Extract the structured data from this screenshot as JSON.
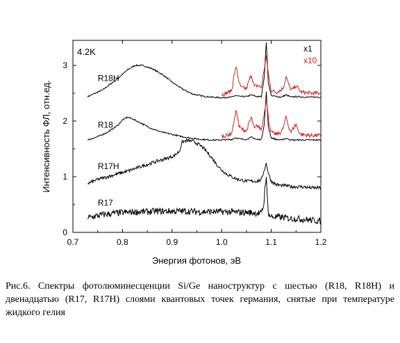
{
  "chart_data": {
    "type": "line",
    "title": "",
    "xlabel": "Энергия фотонов, эВ",
    "ylabel": "Интенсивность ФЛ, отн.ед.",
    "xlim": [
      0.7,
      1.2
    ],
    "ylim": [
      0,
      3.45
    ],
    "x_ticks": [
      "0.7",
      "0.8",
      "0.9",
      "1.0",
      "1.1",
      "1.2"
    ],
    "y_ticks": [
      "0",
      "1",
      "2",
      "3"
    ],
    "annotations": {
      "temperature": "4.2K"
    },
    "legend": {
      "x1": "x1",
      "x10": "x10",
      "placement": "top-right"
    },
    "series": [
      {
        "name": "R18H",
        "color": "#000000",
        "multiplier": "x1",
        "x": [
          0.73,
          0.76,
          0.79,
          0.81,
          0.825,
          0.84,
          0.86,
          0.88,
          0.9,
          0.92,
          0.94,
          0.96,
          0.98,
          1.0,
          1.02,
          1.028,
          1.036,
          1.05,
          1.06,
          1.07,
          1.08,
          1.086,
          1.09,
          1.094,
          1.1,
          1.11,
          1.12,
          1.13,
          1.14,
          1.15,
          1.17,
          1.2
        ],
        "y": [
          2.44,
          2.56,
          2.76,
          2.92,
          3.0,
          3.0,
          2.94,
          2.84,
          2.7,
          2.58,
          2.49,
          2.45,
          2.43,
          2.42,
          2.43,
          2.46,
          2.44,
          2.44,
          2.47,
          2.44,
          2.44,
          2.8,
          3.42,
          2.7,
          2.46,
          2.44,
          2.43,
          2.47,
          2.43,
          2.44,
          2.43,
          2.43
        ]
      },
      {
        "name": "R18H x10",
        "color": "#d42020",
        "multiplier": "x10",
        "x": [
          1.0,
          1.01,
          1.02,
          1.025,
          1.03,
          1.035,
          1.04,
          1.05,
          1.056,
          1.06,
          1.066,
          1.072,
          1.08,
          1.085,
          1.09,
          1.095,
          1.1,
          1.11,
          1.12,
          1.125,
          1.13,
          1.135,
          1.14,
          1.145,
          1.15,
          1.155,
          1.16,
          1.18,
          1.2
        ],
        "y": [
          2.48,
          2.5,
          2.55,
          2.82,
          2.98,
          2.68,
          2.6,
          2.58,
          2.75,
          2.82,
          2.62,
          2.64,
          2.6,
          2.9,
          3.15,
          2.8,
          2.55,
          2.52,
          2.56,
          2.62,
          2.8,
          2.66,
          2.56,
          2.58,
          2.64,
          2.58,
          2.52,
          2.5,
          2.5
        ]
      },
      {
        "name": "R18",
        "color": "#000000",
        "multiplier": "x1",
        "x": [
          0.73,
          0.75,
          0.77,
          0.79,
          0.8,
          0.81,
          0.82,
          0.84,
          0.86,
          0.88,
          0.9,
          0.92,
          0.94,
          0.96,
          0.98,
          1.0,
          1.02,
          1.028,
          1.036,
          1.05,
          1.06,
          1.07,
          1.08,
          1.086,
          1.09,
          1.094,
          1.1,
          1.11,
          1.12,
          1.13,
          1.14,
          1.16,
          1.2
        ],
        "y": [
          1.66,
          1.72,
          1.8,
          1.92,
          2.02,
          2.07,
          2.04,
          1.95,
          1.86,
          1.8,
          1.76,
          1.72,
          1.69,
          1.67,
          1.66,
          1.66,
          1.67,
          1.7,
          1.68,
          1.67,
          1.71,
          1.67,
          1.67,
          1.95,
          2.52,
          1.9,
          1.7,
          1.67,
          1.66,
          1.69,
          1.66,
          1.66,
          1.66
        ]
      },
      {
        "name": "R18 x10",
        "color": "#d42020",
        "multiplier": "x10",
        "x": [
          1.0,
          1.01,
          1.02,
          1.025,
          1.03,
          1.035,
          1.04,
          1.05,
          1.056,
          1.06,
          1.066,
          1.072,
          1.08,
          1.085,
          1.09,
          1.095,
          1.1,
          1.11,
          1.12,
          1.125,
          1.13,
          1.135,
          1.14,
          1.145,
          1.15,
          1.155,
          1.16,
          1.18,
          1.2
        ],
        "y": [
          1.72,
          1.74,
          1.78,
          2.0,
          2.2,
          1.9,
          1.86,
          1.82,
          1.98,
          2.06,
          1.86,
          1.92,
          1.84,
          2.1,
          2.4,
          2.0,
          1.8,
          1.76,
          1.8,
          1.9,
          2.08,
          1.9,
          1.8,
          1.88,
          1.94,
          1.82,
          1.76,
          1.74,
          1.74
        ]
      },
      {
        "name": "R17H",
        "color": "#000000",
        "multiplier": "x1",
        "x": [
          0.73,
          0.75,
          0.77,
          0.79,
          0.81,
          0.83,
          0.85,
          0.87,
          0.89,
          0.905,
          0.915,
          0.92,
          0.93,
          0.94,
          0.95,
          0.96,
          0.97,
          0.98,
          0.99,
          1.0,
          1.01,
          1.02,
          1.03,
          1.04,
          1.05,
          1.06,
          1.07,
          1.08,
          1.085,
          1.09,
          1.095,
          1.1,
          1.11,
          1.12,
          1.13,
          1.14,
          1.15,
          1.16,
          1.17,
          1.18,
          1.19,
          1.2
        ],
        "y": [
          0.88,
          0.95,
          1.0,
          1.05,
          1.1,
          1.16,
          1.22,
          1.28,
          1.33,
          1.38,
          1.46,
          1.62,
          1.65,
          1.64,
          1.6,
          1.54,
          1.45,
          1.34,
          1.22,
          1.12,
          1.05,
          1.0,
          0.96,
          0.94,
          0.92,
          0.92,
          0.92,
          0.94,
          1.1,
          1.24,
          1.04,
          0.92,
          0.86,
          0.84,
          0.84,
          0.82,
          0.82,
          0.82,
          0.81,
          0.8,
          0.8,
          0.8
        ]
      },
      {
        "name": "R17",
        "color": "#000000",
        "multiplier": "x1",
        "x": [
          0.73,
          0.75,
          0.77,
          0.79,
          0.81,
          0.83,
          0.85,
          0.87,
          0.89,
          0.91,
          0.93,
          0.95,
          0.97,
          0.99,
          1.01,
          1.03,
          1.05,
          1.07,
          1.08,
          1.085,
          1.088,
          1.09,
          1.092,
          1.095,
          1.1,
          1.12,
          1.14,
          1.16,
          1.18,
          1.2
        ],
        "y": [
          0.26,
          0.3,
          0.33,
          0.35,
          0.36,
          0.37,
          0.37,
          0.38,
          0.38,
          0.38,
          0.38,
          0.37,
          0.37,
          0.37,
          0.37,
          0.36,
          0.36,
          0.35,
          0.34,
          0.5,
          0.9,
          0.95,
          0.62,
          0.32,
          0.28,
          0.27,
          0.25,
          0.24,
          0.22,
          0.2
        ]
      }
    ],
    "curve_labels": [
      {
        "text": "R18H",
        "x": 0.725,
        "y": 2.72
      },
      {
        "text": "R18",
        "x": 0.725,
        "y": 1.88
      },
      {
        "text": "R17H",
        "x": 0.725,
        "y": 1.14
      },
      {
        "text": "R17",
        "x": 0.725,
        "y": 0.48
      }
    ]
  },
  "caption": "Рис.6. Спектры фотолюминесценции Si/Ge наноструктур с шестью (R18, R18H) и двенадцатью (R17, R17H) слоями квантовых точек германия, снятые при температуре жидкого гелия"
}
